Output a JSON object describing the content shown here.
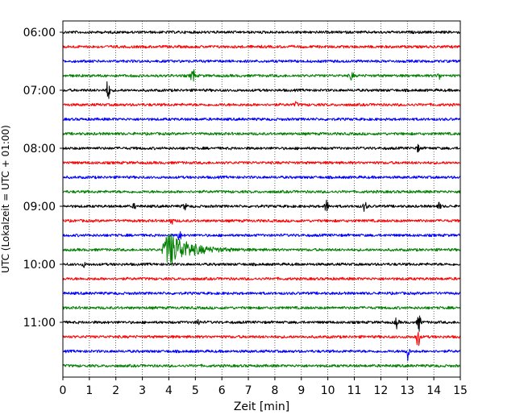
{
  "chart_data": {
    "type": "line",
    "title": "",
    "xlabel": "Zeit  [min]",
    "ylabel": "UTC (Lokalzeit = UTC + 01:00)",
    "xlim": [
      0,
      15
    ],
    "x_ticks": [
      "0",
      "1",
      "2",
      "3",
      "4",
      "5",
      "6",
      "7",
      "8",
      "9",
      "10",
      "11",
      "12",
      "13",
      "14",
      "15"
    ],
    "row_start": "06:00",
    "row_interval_minutes": 15,
    "y_tick_labels": [
      "06:00",
      "07:00",
      "08:00",
      "09:00",
      "10:00",
      "11:00"
    ],
    "vertical_grid": true,
    "grid_style": "dotted",
    "legend": "none",
    "trace_colors": [
      "#000000",
      "#ff0000",
      "#0000ff",
      "#008000"
    ],
    "events": [
      {
        "row": 3,
        "minute": 4.9,
        "amplitude": 0.9
      },
      {
        "row": 3,
        "minute": 10.9,
        "amplitude": 0.4
      },
      {
        "row": 3,
        "minute": 14.2,
        "amplitude": 0.3
      },
      {
        "row": 4,
        "minute": 1.7,
        "amplitude": 1.0
      },
      {
        "row": 5,
        "minute": 8.8,
        "amplitude": 0.2
      },
      {
        "row": 8,
        "minute": 13.4,
        "amplitude": 0.3
      },
      {
        "row": 12,
        "minute": 2.7,
        "amplitude": 0.2
      },
      {
        "row": 12,
        "minute": 4.6,
        "amplitude": 0.3
      },
      {
        "row": 12,
        "minute": 9.95,
        "amplitude": 0.6
      },
      {
        "row": 12,
        "minute": 11.4,
        "amplitude": 0.5
      },
      {
        "row": 12,
        "minute": 14.2,
        "amplitude": 0.3
      },
      {
        "row": 13,
        "minute": 4.1,
        "amplitude": 0.3
      },
      {
        "row": 14,
        "minute": 4.4,
        "amplitude": 0.5
      },
      {
        "row": 15,
        "minute": 4.0,
        "amplitude": 3.2
      },
      {
        "row": 16,
        "minute": 0.8,
        "amplitude": 0.2
      },
      {
        "row": 20,
        "minute": 5.1,
        "amplitude": 0.3
      },
      {
        "row": 20,
        "minute": 12.6,
        "amplitude": 0.5
      },
      {
        "row": 20,
        "minute": 13.45,
        "amplitude": 0.8
      },
      {
        "row": 21,
        "minute": 13.4,
        "amplitude": 1.0
      },
      {
        "row": 22,
        "minute": 13.0,
        "amplitude": 0.9
      }
    ]
  }
}
